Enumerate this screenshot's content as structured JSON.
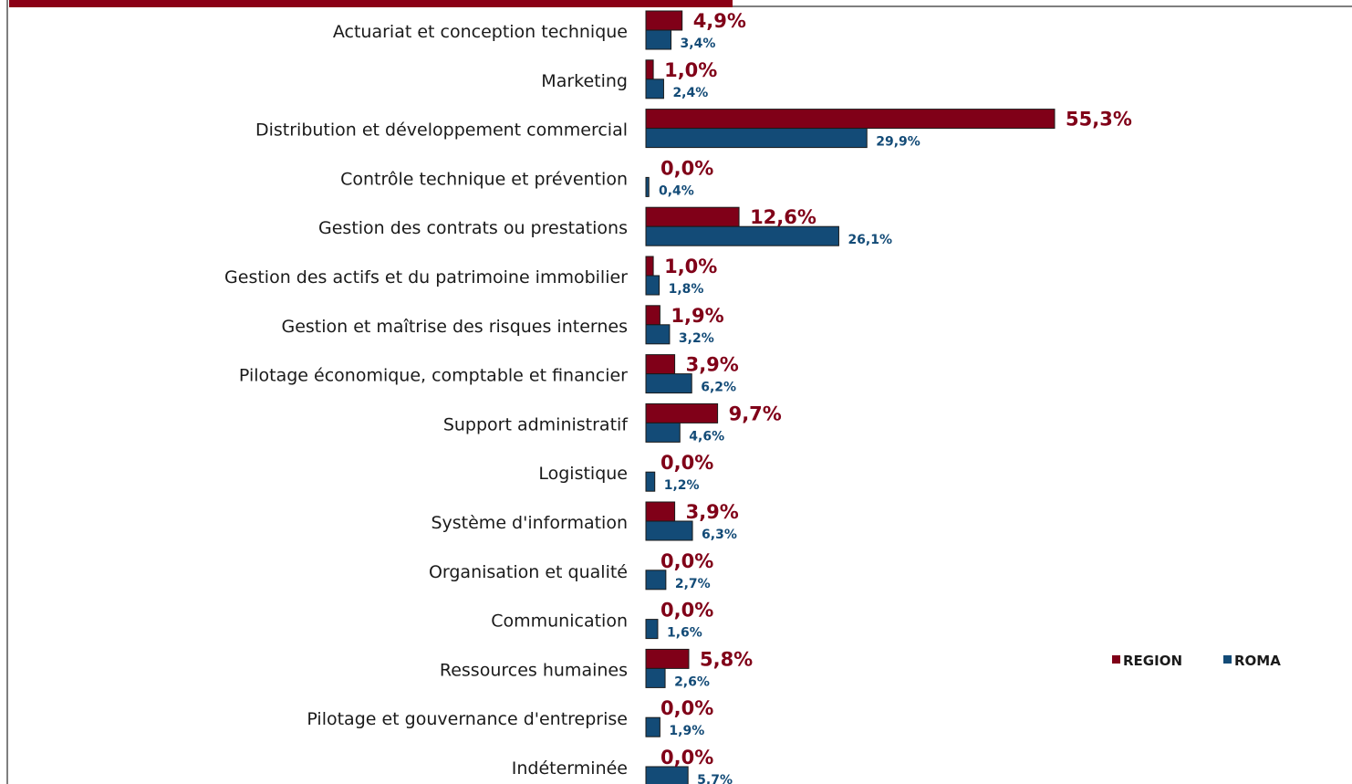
{
  "colors": {
    "region": "#800018",
    "roma": "#134b77",
    "frame": "#7f7f7f",
    "title_bar": "#8b0016"
  },
  "chart_data": {
    "type": "bar",
    "orientation": "horizontal",
    "categories": [
      "Actuariat et conception technique",
      "Marketing",
      "Distribution et développement commercial",
      "Contrôle technique et prévention",
      "Gestion des contrats ou prestations",
      "Gestion des actifs et du patrimoine immobilier",
      "Gestion et maîtrise des risques internes",
      "Pilotage économique, comptable et financier",
      "Support administratif",
      "Logistique",
      "Système d'information",
      "Organisation et qualité",
      "Communication",
      "Ressources humaines",
      "Pilotage et gouvernance d'entreprise",
      "Indéterminée"
    ],
    "series": [
      {
        "name": "REGION",
        "color": "#800018",
        "values": [
          4.9,
          1.0,
          55.3,
          0.0,
          12.6,
          1.0,
          1.9,
          3.9,
          9.7,
          0.0,
          3.9,
          0.0,
          0.0,
          5.8,
          0.0,
          0.0
        ],
        "labels": [
          "4,9%",
          "1,0%",
          "55,3%",
          "0,0%",
          "12,6%",
          "1,0%",
          "1,9%",
          "3,9%",
          "9,7%",
          "0,0%",
          "3,9%",
          "0,0%",
          "0,0%",
          "5,8%",
          "0,0%",
          "0,0%"
        ]
      },
      {
        "name": "ROMA",
        "color": "#134b77",
        "values": [
          3.4,
          2.4,
          29.9,
          0.4,
          26.1,
          1.8,
          3.2,
          6.2,
          4.6,
          1.2,
          6.3,
          2.7,
          1.6,
          2.6,
          1.9,
          5.7
        ],
        "labels": [
          "3,4%",
          "2,4%",
          "29,9%",
          "0,4%",
          "26,1%",
          "1,8%",
          "3,2%",
          "6,2%",
          "4,6%",
          "1,2%",
          "6,3%",
          "2,7%",
          "1,6%",
          "2,6%",
          "1,9%",
          "5,7%"
        ]
      }
    ],
    "legend": {
      "position": "right",
      "entries": [
        "REGION",
        "ROMA"
      ]
    },
    "grid": false
  }
}
